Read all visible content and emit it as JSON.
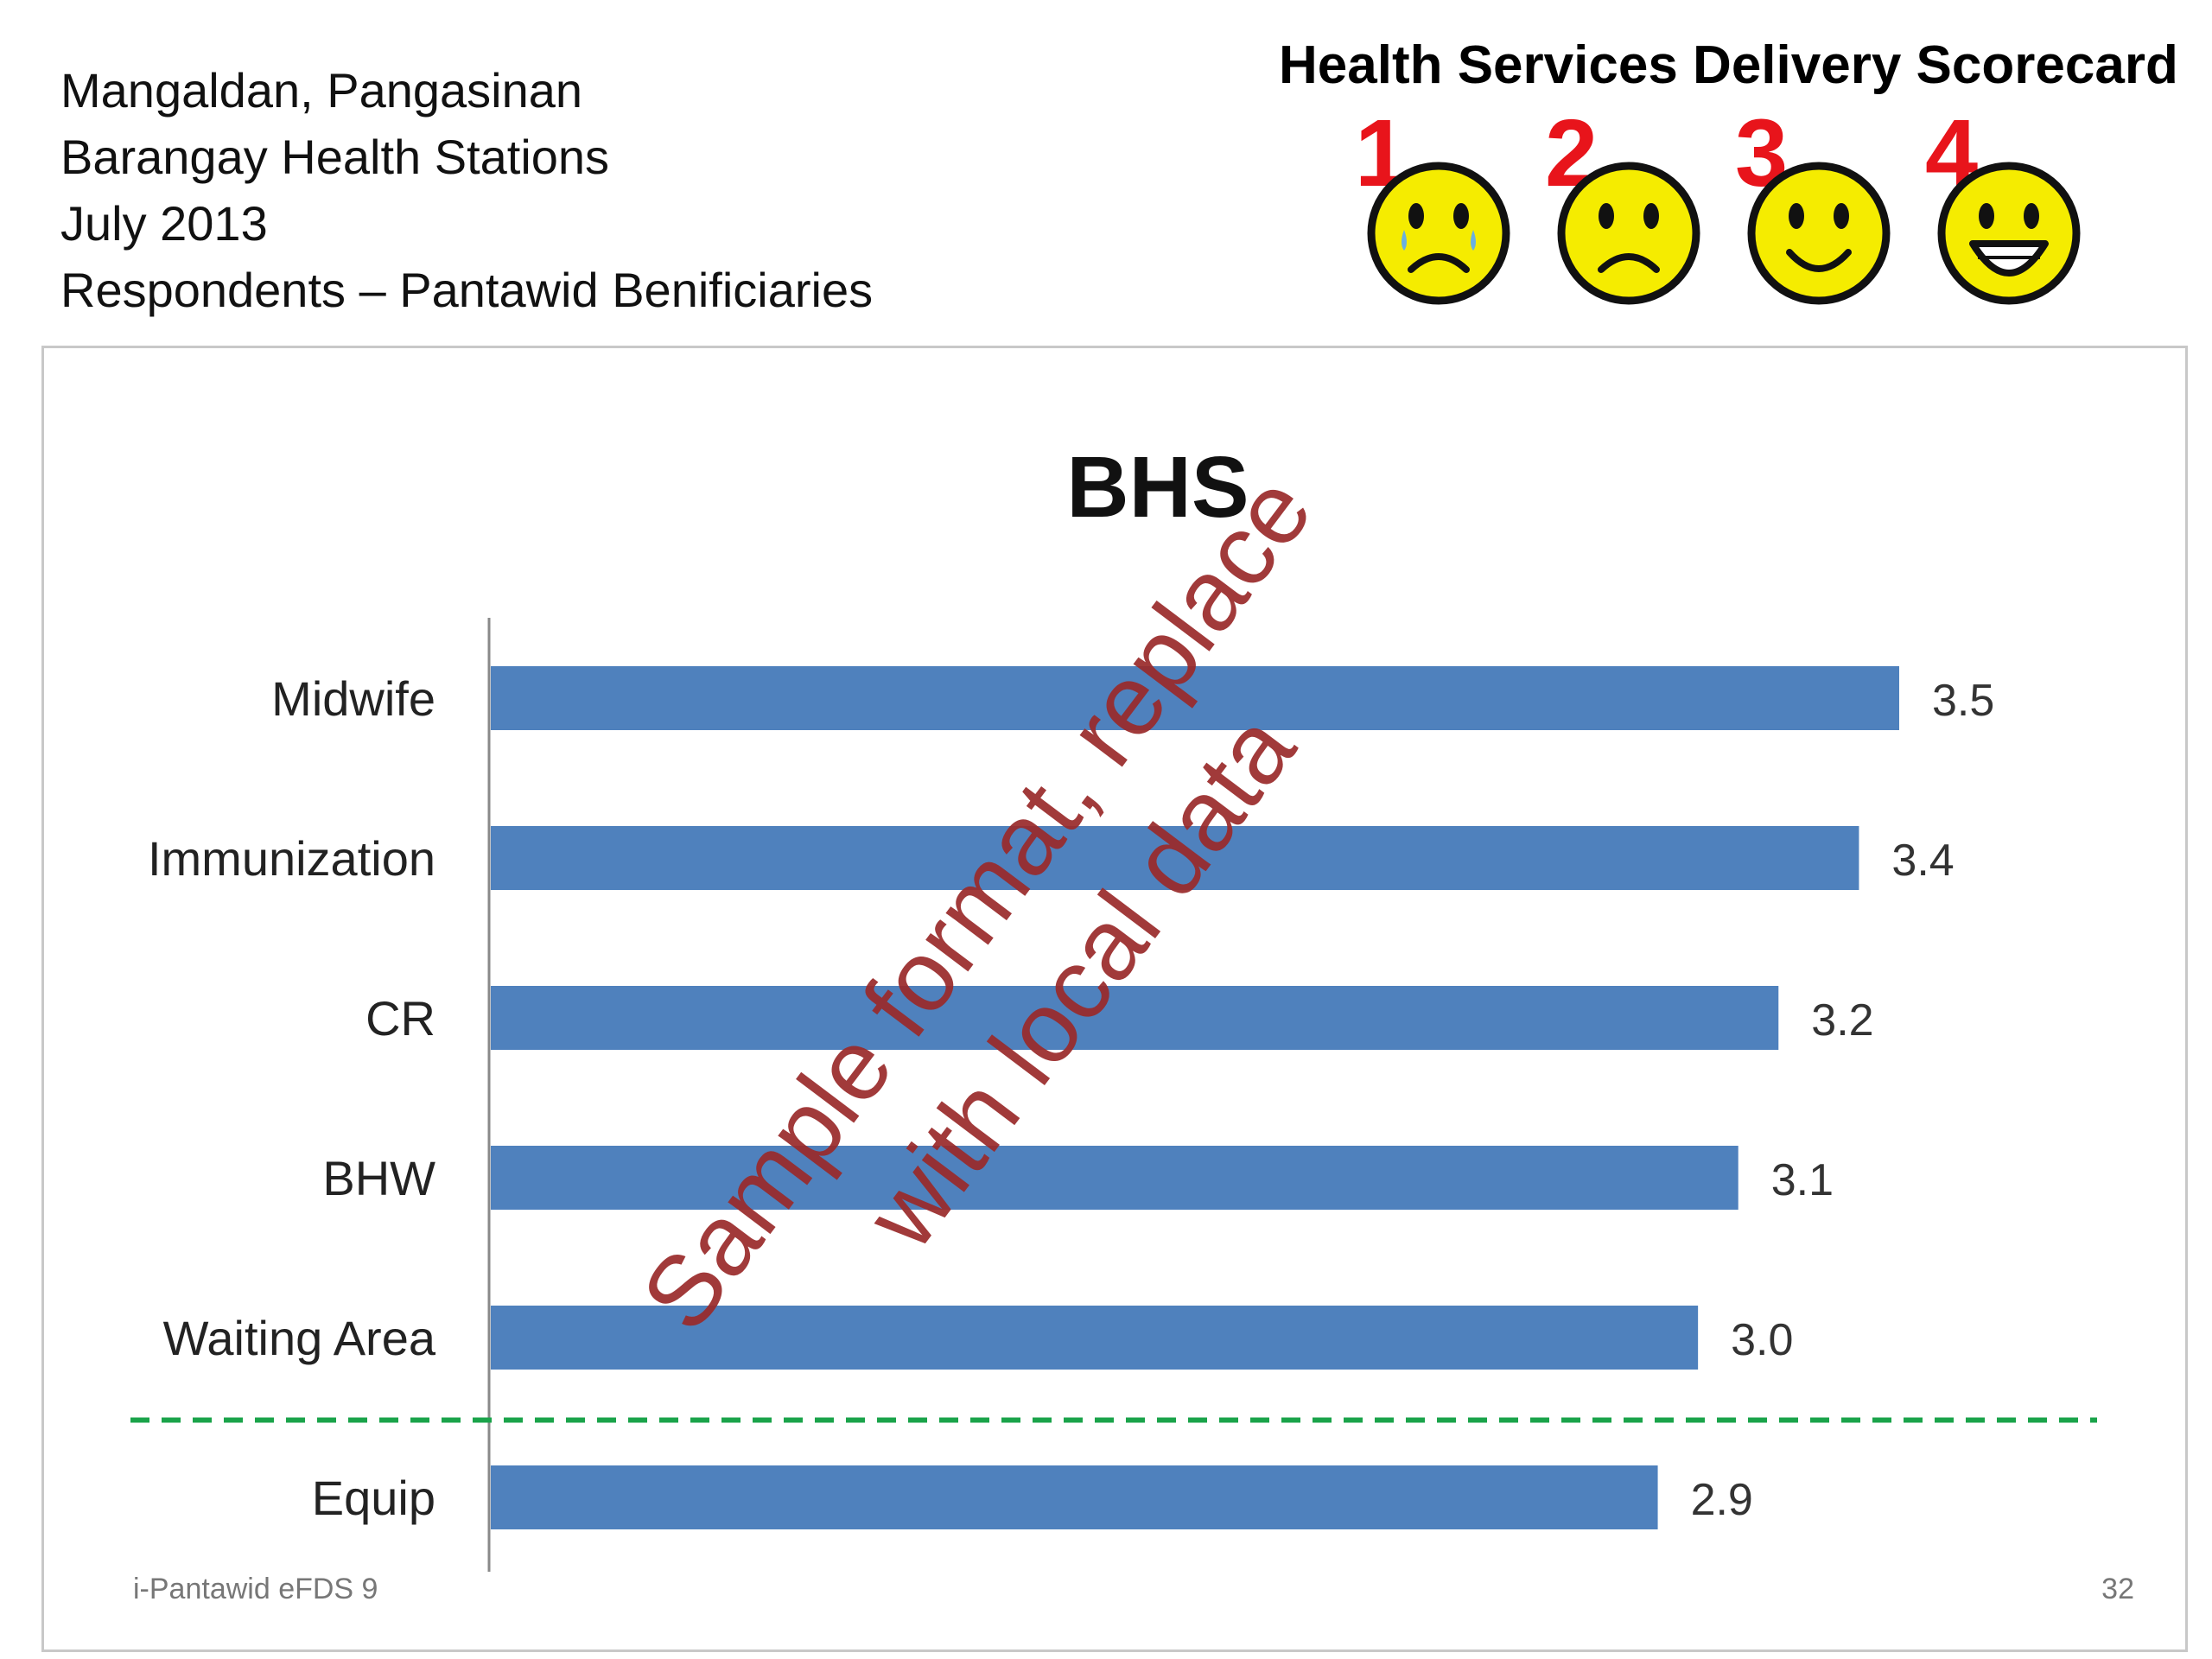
{
  "header": {
    "lines": [
      "Mangaldan, Pangasinan",
      "Barangay Health Stations",
      "July 2013",
      "Respondents – Pantawid Benificiaries"
    ]
  },
  "scorecard": {
    "title": "Health Services Delivery Scorecard",
    "faces": [
      {
        "number": "1",
        "mood": "crying-face-icon"
      },
      {
        "number": "2",
        "mood": "sad-face-icon"
      },
      {
        "number": "3",
        "mood": "smiling-face-icon"
      },
      {
        "number": "4",
        "mood": "grinning-face-icon"
      }
    ],
    "number_color": "#e8141b",
    "face_color": "#f5ec00"
  },
  "chart_data": {
    "type": "bar",
    "orientation": "horizontal",
    "title": "BHS",
    "categories": [
      "Midwife",
      "Immunization",
      "CR",
      "BHW",
      "Waiting Area",
      "Equip"
    ],
    "values": [
      3.5,
      3.4,
      3.2,
      3.1,
      3.0,
      2.9
    ],
    "data_labels": [
      "3.5",
      "3.4",
      "3.2",
      "3.1",
      "3.0",
      "2.9"
    ],
    "xlim": [
      0,
      3.5
    ],
    "bar_color": "#4f81bd",
    "threshold": {
      "value": 3.0,
      "style": "dashed",
      "color": "#1aa34a",
      "placement": "between Waiting Area and Equip"
    },
    "grid": false,
    "legend": "none"
  },
  "watermark": "Sample format, replace with local data",
  "footer": {
    "left": "i-Pantawid eFDS 9",
    "right": "32"
  }
}
